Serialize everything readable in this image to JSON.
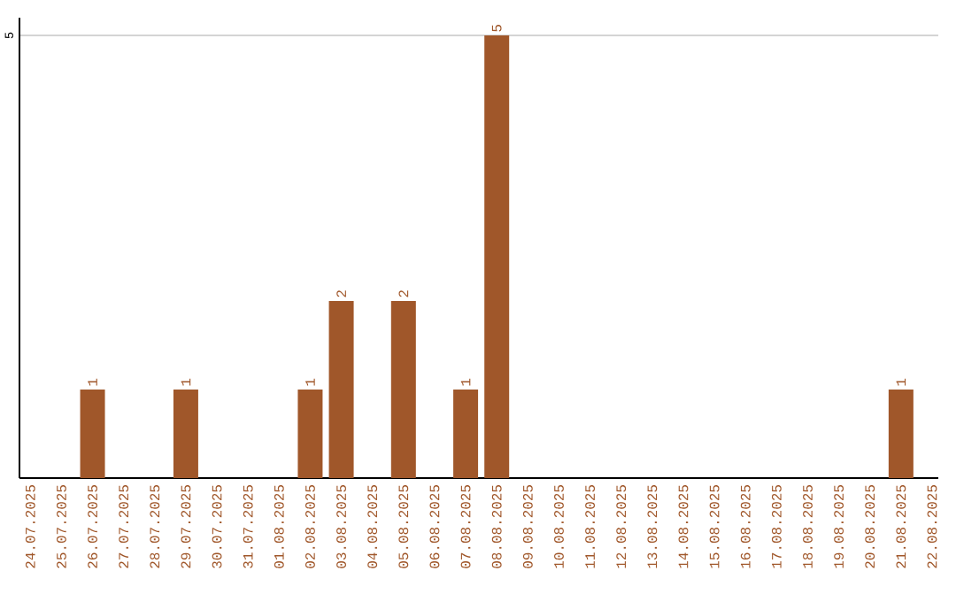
{
  "chart_data": {
    "type": "bar",
    "categories": [
      "24.07.2025",
      "25.07.2025",
      "26.07.2025",
      "27.07.2025",
      "28.07.2025",
      "29.07.2025",
      "30.07.2025",
      "31.07.2025",
      "01.08.2025",
      "02.08.2025",
      "03.08.2025",
      "04.08.2025",
      "05.08.2025",
      "06.08.2025",
      "07.08.2025",
      "08.08.2025",
      "09.08.2025",
      "10.08.2025",
      "11.08.2025",
      "12.08.2025",
      "13.08.2025",
      "14.08.2025",
      "15.08.2025",
      "16.08.2025",
      "17.08.2025",
      "18.08.2025",
      "19.08.2025",
      "20.08.2025",
      "21.08.2025",
      "22.08.2025"
    ],
    "values": [
      0,
      0,
      1,
      0,
      0,
      1,
      0,
      0,
      0,
      1,
      2,
      0,
      2,
      0,
      1,
      5,
      0,
      0,
      0,
      0,
      0,
      0,
      0,
      0,
      0,
      0,
      0,
      0,
      1,
      0
    ],
    "value_labels": [
      null,
      null,
      "1",
      null,
      null,
      "1",
      null,
      null,
      null,
      "1",
      "2",
      null,
      "2",
      null,
      "1",
      "5",
      null,
      null,
      null,
      null,
      null,
      null,
      null,
      null,
      null,
      null,
      null,
      null,
      "1",
      null
    ],
    "color": "#a0572a",
    "ylim": [
      0,
      5.2
    ],
    "yticks": [
      5
    ],
    "grid": "y"
  }
}
